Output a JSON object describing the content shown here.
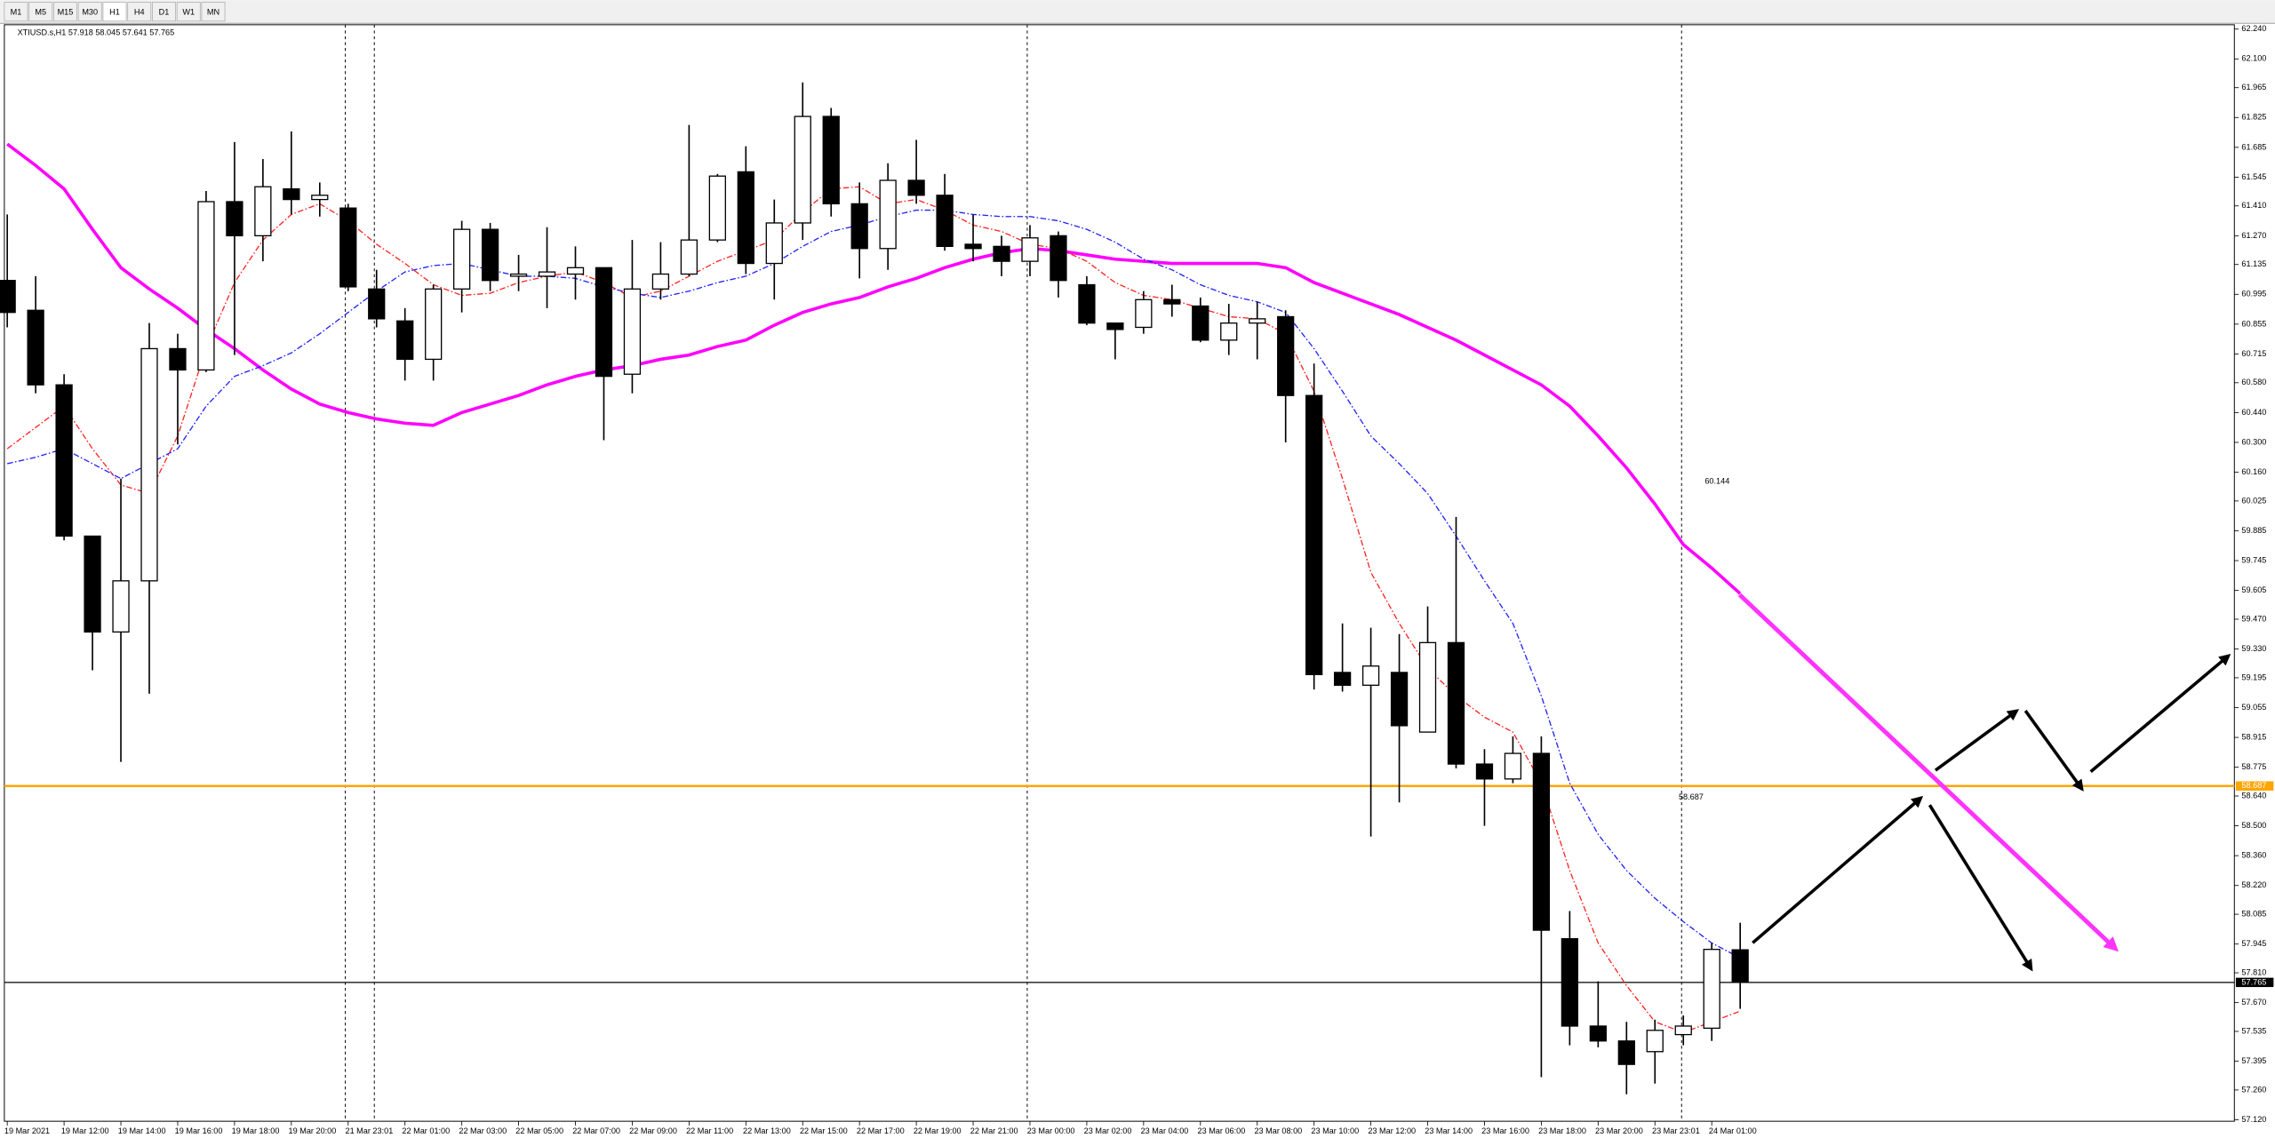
{
  "toolbar": {
    "timeframes": [
      "M1",
      "M5",
      "M15",
      "M30",
      "H1",
      "H4",
      "D1",
      "W1",
      "MN"
    ],
    "active": 4
  },
  "chart_data": {
    "type": "candlestick",
    "symbol": "XTIUSD.s,H1",
    "ohlc_header": [
      57.918,
      58.045,
      57.641,
      57.765
    ],
    "categories": [
      "19 Mar 2021",
      null,
      "19 Mar 12:00",
      null,
      "19 Mar 14:00",
      null,
      "19 Mar 16:00",
      null,
      "19 Mar 18:00",
      null,
      "19 Mar 20:00",
      null,
      "21 Mar 23:01",
      null,
      "22 Mar 01:00",
      null,
      "22 Mar 03:00",
      null,
      "22 Mar 05:00",
      null,
      "22 Mar 07:00",
      null,
      "22 Mar 09:00",
      null,
      "22 Mar 11:00",
      null,
      "22 Mar 13:00",
      null,
      "22 Mar 15:00",
      null,
      "22 Mar 17:00",
      null,
      "22 Mar 19:00",
      null,
      "22 Mar 21:00",
      null,
      "23 Mar 00:00",
      null,
      "23 Mar 02:00",
      null,
      "23 Mar 04:00",
      null,
      "23 Mar 06:00",
      null,
      "23 Mar 08:00",
      null,
      "23 Mar 10:00",
      null,
      "23 Mar 12:00",
      null,
      "23 Mar 14:00",
      null,
      "23 Mar 16:00",
      null,
      "23 Mar 18:00",
      null,
      "23 Mar 20:00",
      null,
      "23 Mar 23:01",
      null,
      "24 Mar 01:00",
      null
    ],
    "open": [
      61.06,
      60.92,
      60.57,
      59.86,
      59.41,
      59.65,
      60.74,
      60.64,
      61.43,
      61.27,
      61.49,
      61.44,
      61.4,
      61.02,
      60.87,
      60.69,
      61.02,
      61.3,
      61.08,
      61.08,
      61.09,
      61.12,
      60.62,
      61.02,
      61.09,
      61.25,
      61.57,
      61.14,
      61.33,
      61.83,
      61.42,
      61.21,
      61.53,
      61.46,
      61.23,
      61.22,
      61.15,
      61.27,
      61.04,
      60.86,
      60.84,
      60.97,
      60.94,
      60.78,
      60.86,
      60.89,
      60.52,
      59.22,
      59.16,
      59.22,
      58.94,
      59.36,
      58.79,
      58.72,
      58.84,
      57.97,
      57.56,
      57.49,
      57.44,
      57.52,
      57.55,
      57.918
    ],
    "high": [
      61.37,
      61.08,
      60.62,
      59.86,
      60.13,
      60.86,
      60.81,
      61.48,
      61.71,
      61.63,
      61.76,
      61.52,
      61.42,
      61.11,
      60.93,
      61.04,
      61.34,
      61.33,
      61.18,
      61.31,
      61.22,
      61.12,
      61.25,
      61.24,
      61.79,
      61.56,
      61.69,
      61.44,
      61.99,
      61.87,
      61.52,
      61.61,
      61.72,
      61.56,
      61.37,
      61.27,
      61.32,
      61.29,
      61.08,
      60.86,
      61.01,
      61.04,
      60.98,
      60.95,
      60.96,
      60.92,
      60.67,
      59.45,
      59.43,
      59.4,
      59.53,
      59.95,
      58.86,
      58.92,
      58.92,
      58.1,
      57.77,
      57.58,
      57.59,
      57.61,
      57.95,
      58.045
    ],
    "low": [
      60.84,
      60.53,
      59.84,
      59.23,
      58.8,
      59.12,
      60.29,
      60.63,
      60.71,
      61.15,
      61.37,
      61.36,
      61.01,
      60.84,
      60.59,
      60.59,
      60.91,
      61.01,
      61.01,
      60.93,
      60.97,
      60.31,
      60.53,
      60.97,
      61.08,
      61.24,
      61.09,
      60.97,
      61.25,
      61.36,
      61.07,
      61.11,
      61.42,
      61.2,
      61.15,
      61.08,
      61.08,
      60.98,
      60.85,
      60.69,
      60.81,
      60.89,
      60.77,
      60.71,
      60.69,
      60.3,
      59.14,
      59.13,
      58.45,
      58.61,
      58.94,
      58.77,
      58.5,
      58.7,
      57.32,
      57.47,
      57.46,
      57.24,
      57.29,
      57.47,
      57.49,
      57.641
    ],
    "close": [
      60.91,
      60.57,
      59.86,
      59.41,
      59.65,
      60.74,
      60.64,
      61.43,
      61.27,
      61.5,
      61.44,
      61.46,
      61.03,
      60.88,
      60.69,
      61.02,
      61.3,
      61.06,
      61.09,
      61.1,
      61.12,
      60.61,
      61.02,
      61.09,
      61.25,
      61.55,
      61.14,
      61.33,
      61.83,
      61.42,
      61.21,
      61.53,
      61.46,
      61.22,
      61.21,
      61.15,
      61.26,
      61.06,
      60.86,
      60.83,
      60.97,
      60.95,
      60.78,
      60.86,
      60.88,
      60.52,
      59.21,
      59.16,
      59.25,
      58.97,
      59.36,
      58.79,
      58.72,
      58.84,
      58.01,
      57.56,
      57.49,
      57.38,
      57.54,
      57.56,
      57.92,
      57.765
    ],
    "up_color": "#ffffff",
    "down_color": "#000000",
    "lines": [
      {
        "color": "#ff00ff",
        "style": "solid",
        "values": [
          61.7,
          61.6,
          61.49,
          61.3,
          61.12,
          61.02,
          60.93,
          60.83,
          60.74,
          60.64,
          60.55,
          60.48,
          60.44,
          60.41,
          60.39,
          60.38,
          60.44,
          60.48,
          60.52,
          60.57,
          60.61,
          60.64,
          60.66,
          60.69,
          60.71,
          60.75,
          60.78,
          60.85,
          60.91,
          60.95,
          60.98,
          61.03,
          61.07,
          61.12,
          61.16,
          61.19,
          61.21,
          61.2,
          61.18,
          61.16,
          61.15,
          61.14,
          61.14,
          61.14,
          61.14,
          61.12,
          61.05,
          61.0,
          60.95,
          60.9,
          60.84,
          60.78,
          60.71,
          60.64,
          60.57,
          60.47,
          60.33,
          60.18,
          60.01,
          59.82,
          59.71,
          59.59
        ]
      },
      {
        "color": "#ff2020",
        "style": "dashdot",
        "values": [
          60.27,
          60.37,
          60.47,
          60.27,
          60.1,
          60.06,
          60.33,
          60.74,
          61.05,
          61.25,
          61.37,
          61.42,
          61.34,
          61.23,
          61.14,
          61.04,
          60.99,
          61.0,
          61.05,
          61.08,
          61.1,
          61.05,
          60.98,
          61.01,
          61.08,
          61.15,
          61.2,
          61.25,
          61.38,
          61.49,
          61.5,
          61.42,
          61.44,
          61.39,
          61.32,
          61.29,
          61.23,
          61.21,
          61.15,
          61.05,
          60.99,
          60.97,
          60.93,
          60.89,
          60.88,
          60.81,
          60.54,
          60.13,
          59.69,
          59.45,
          59.24,
          59.11,
          59.01,
          58.94,
          58.7,
          58.29,
          57.95,
          57.75,
          57.58,
          57.53,
          57.58,
          57.63
        ]
      },
      {
        "color": "#2020ff",
        "style": "dashdot",
        "values": [
          60.2,
          60.23,
          60.27,
          60.2,
          60.13,
          60.2,
          60.27,
          60.47,
          60.61,
          60.66,
          60.72,
          60.81,
          60.91,
          61.01,
          61.1,
          61.13,
          61.14,
          61.11,
          61.08,
          61.08,
          61.07,
          61.03,
          61.0,
          60.98,
          61.01,
          61.05,
          61.08,
          61.14,
          61.22,
          61.29,
          61.32,
          61.36,
          61.39,
          61.39,
          61.37,
          61.36,
          61.36,
          61.34,
          61.3,
          61.24,
          61.16,
          61.11,
          61.04,
          60.99,
          60.96,
          60.91,
          60.74,
          60.54,
          60.33,
          60.2,
          60.06,
          59.86,
          59.65,
          59.45,
          59.11,
          58.7,
          58.46,
          58.29,
          58.16,
          58.05,
          57.95,
          57.88
        ]
      }
    ],
    "levels": [
      {
        "value": 58.687,
        "color": "#ffa500"
      },
      {
        "value": 57.765,
        "color": "#000000"
      }
    ],
    "annotation": 60.144,
    "ylim": [
      57.12,
      62.24
    ],
    "yticks": [
      {
        "value": 62.24,
        "label": "62.240"
      },
      {
        "value": 62.1,
        "label": "62.100"
      },
      61.965,
      61.825,
      61.685,
      61.545,
      {
        "value": 61.41,
        "label": "61.410"
      },
      {
        "value": 61.27,
        "label": "61.270"
      },
      61.135,
      60.995,
      60.855,
      60.715,
      {
        "value": 60.58,
        "label": "60.580"
      },
      {
        "value": 60.44,
        "label": "60.440"
      },
      {
        "value": 60.3,
        "label": "60.300"
      },
      {
        "value": 60.16,
        "label": "60.160"
      },
      60.025,
      59.885,
      59.745,
      59.605,
      {
        "value": 59.47,
        "label": "59.470"
      },
      {
        "value": 59.33,
        "label": "59.330"
      },
      59.195,
      59.055,
      58.915,
      58.775,
      {
        "value": 58.64,
        "label": "58.640"
      },
      {
        "value": 58.5,
        "label": "58.500"
      },
      {
        "value": 58.36,
        "label": "58.360"
      },
      {
        "value": 58.22,
        "label": "58.220"
      },
      58.085,
      57.945,
      {
        "value": 57.81,
        "label": "57.810"
      },
      {
        "value": 57.67,
        "label": "57.670"
      },
      57.535,
      57.395,
      {
        "value": 57.26,
        "label": "57.260"
      },
      {
        "value": 57.12,
        "label": "57.120"
      }
    ],
    "grid": false
  }
}
